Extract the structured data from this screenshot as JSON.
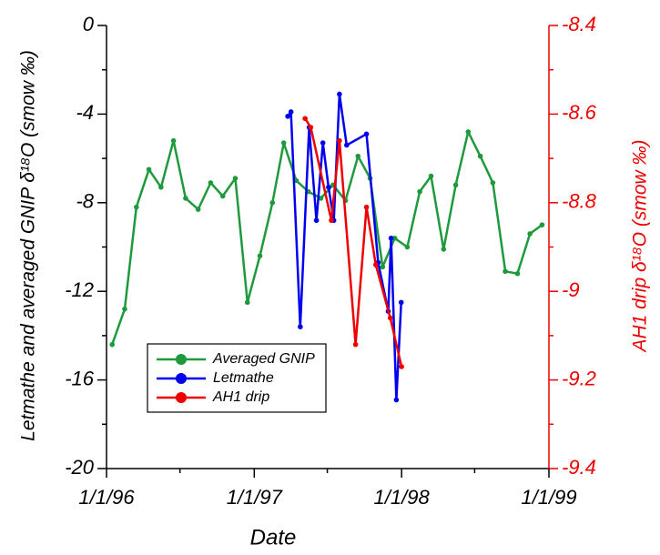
{
  "chart_data": {
    "type": "line",
    "x_label": "Date",
    "y_label": "Letmathe and averaged GNIP δ¹⁸O (smow ‰)",
    "y2_label": "AH1 drip δ¹⁸O (smow ‰)",
    "xlim": [
      "1996-01-01",
      "1999-01-01"
    ],
    "xticks": [
      {
        "value": "1996-01-01",
        "label": "1/1/96"
      },
      {
        "value": "1997-01-01",
        "label": "1/1/97"
      },
      {
        "value": "1998-01-01",
        "label": "1/1/98"
      },
      {
        "value": "1999-01-01",
        "label": "1/1/99"
      }
    ],
    "xminor_ticks": [
      "1996-07-01",
      "1997-07-01",
      "1998-07-01"
    ],
    "ylim": [
      -20,
      0
    ],
    "yticks": [
      0,
      -4,
      -8,
      -12,
      -16,
      -20
    ],
    "yminor_ticks": [
      -2,
      -6,
      -10,
      -14,
      -18
    ],
    "y2lim": [
      -9.4,
      -8.4
    ],
    "y2ticks": [
      -8.4,
      -8.6,
      -8.8,
      -9,
      -9.2,
      -9.4
    ],
    "y2minor_ticks": [
      -8.5,
      -8.7,
      -8.9,
      -9.1,
      -9.3
    ],
    "y2_color": "#ee0000",
    "legend_position": "lower-left",
    "series": [
      {
        "name": "Averaged GNIP",
        "color": "#1e9a3c",
        "x": [
          "1996-01-15",
          "1996-02-15",
          "1996-03-15",
          "1996-04-15",
          "1996-05-15",
          "1996-06-15",
          "1996-07-15",
          "1996-08-15",
          "1996-09-15",
          "1996-10-15",
          "1996-11-15",
          "1996-12-15",
          "1997-01-15",
          "1997-02-15",
          "1997-03-15",
          "1997-04-15",
          "1997-05-15",
          "1997-06-15",
          "1997-07-15",
          "1997-08-15",
          "1997-09-15",
          "1997-10-15",
          "1997-11-15",
          "1997-12-15",
          "1998-01-15",
          "1998-02-15",
          "1998-03-15",
          "1998-04-15",
          "1998-05-15",
          "1998-06-15",
          "1998-07-15",
          "1998-08-15",
          "1998-09-15",
          "1998-10-15",
          "1998-11-15",
          "1998-12-15"
        ],
        "values": [
          -14.4,
          -12.8,
          -8.2,
          -6.5,
          -7.3,
          -5.2,
          -7.8,
          -8.3,
          -7.1,
          -7.7,
          -6.9,
          -12.5,
          -10.4,
          -8.0,
          -5.3,
          -7.0,
          -7.5,
          -7.8,
          -7.2,
          -7.9,
          -5.9,
          -6.9,
          -10.9,
          -9.6,
          -10.0,
          -7.5,
          -6.8,
          -10.1,
          -7.2,
          -4.8,
          -5.9,
          -7.1,
          -11.1,
          -11.2,
          -9.4,
          -9.0
        ]
      },
      {
        "name": "Letmathe",
        "color": "#0000ee",
        "x": [
          "1997-03-25",
          "1997-04-02",
          "1997-04-25",
          "1997-05-17",
          "1997-06-04",
          "1997-06-20",
          "1997-07-04",
          "1997-07-17",
          "1997-07-31",
          "1997-08-18",
          "1997-10-06",
          "1997-11-04",
          "1997-11-29",
          "1997-12-06",
          "1997-12-19",
          "1997-12-31"
        ],
        "values": [
          -4.1,
          -3.9,
          -13.6,
          -4.6,
          -8.8,
          -5.3,
          -7.3,
          -8.8,
          -3.1,
          -5.4,
          -4.9,
          -10.7,
          -12.9,
          -9.6,
          -16.9,
          -12.5
        ]
      },
      {
        "name": "AH1 drip",
        "color": "#ee0000",
        "axis": "y2",
        "x": [
          "1997-05-07",
          "1997-05-21",
          "1997-07-11",
          "1997-07-31",
          "1997-09-09",
          "1997-10-06",
          "1997-10-29",
          "1997-12-04",
          "1998-01-01"
        ],
        "values": [
          -8.61,
          -8.63,
          -8.84,
          -8.66,
          -9.12,
          -8.81,
          -8.94,
          -9.06,
          -9.17
        ]
      }
    ]
  }
}
